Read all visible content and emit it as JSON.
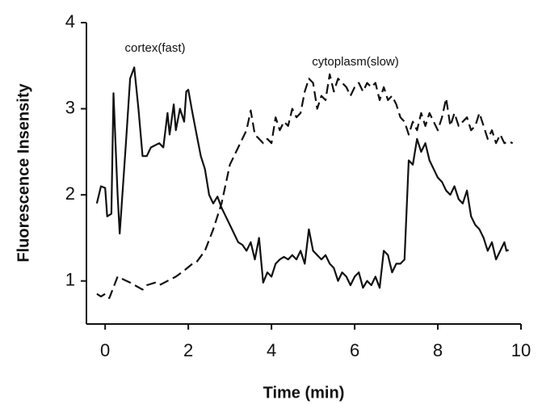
{
  "chart_data": {
    "type": "line",
    "xlabel": "Time (min)",
    "ylabel": "Fluorescence Insensity",
    "xlim": [
      -0.45,
      10
    ],
    "ylim": [
      0.5,
      4
    ],
    "xticks": [
      0,
      2,
      4,
      6,
      8,
      10
    ],
    "yticks": [
      1,
      2,
      3,
      4
    ],
    "grid": false,
    "series": [
      {
        "name": "cortex(fast)",
        "color": "#111111",
        "dash": false,
        "x": [
          -0.2,
          -0.1,
          0,
          0.05,
          0.15,
          0.2,
          0.3,
          0.35,
          0.5,
          0.6,
          0.7,
          0.8,
          0.9,
          1.0,
          1.1,
          1.3,
          1.4,
          1.5,
          1.55,
          1.65,
          1.7,
          1.8,
          1.9,
          1.95,
          2.0,
          2.1,
          2.2,
          2.3,
          2.4,
          2.5,
          2.6,
          2.7,
          2.8,
          2.9,
          3.0,
          3.1,
          3.2,
          3.3,
          3.4,
          3.5,
          3.6,
          3.7,
          3.8,
          3.9,
          4.0,
          4.1,
          4.2,
          4.3,
          4.4,
          4.5,
          4.6,
          4.7,
          4.8,
          4.9,
          5.0,
          5.1,
          5.2,
          5.3,
          5.4,
          5.5,
          5.6,
          5.7,
          5.8,
          5.9,
          6.0,
          6.1,
          6.2,
          6.3,
          6.4,
          6.5,
          6.6,
          6.7,
          6.8,
          6.9,
          7.0,
          7.1,
          7.2,
          7.3,
          7.4,
          7.5,
          7.6,
          7.7,
          7.8,
          7.9,
          8.0,
          8.1,
          8.2,
          8.3,
          8.4,
          8.5,
          8.6,
          8.7,
          8.8,
          8.9,
          9.0,
          9.1,
          9.2,
          9.3,
          9.4,
          9.5,
          9.6,
          9.65,
          9.7
        ],
        "values": [
          1.9,
          2.1,
          2.08,
          1.75,
          1.78,
          3.18,
          2.0,
          1.55,
          2.6,
          3.35,
          3.48,
          3.0,
          2.45,
          2.45,
          2.55,
          2.6,
          2.55,
          2.95,
          2.7,
          3.05,
          2.75,
          3.0,
          2.85,
          3.2,
          3.22,
          2.95,
          2.7,
          2.45,
          2.3,
          2.0,
          1.9,
          1.98,
          1.85,
          1.75,
          1.65,
          1.55,
          1.45,
          1.42,
          1.35,
          1.45,
          1.25,
          1.5,
          0.98,
          1.1,
          1.05,
          1.2,
          1.25,
          1.28,
          1.25,
          1.3,
          1.25,
          1.35,
          1.2,
          1.6,
          1.35,
          1.3,
          1.25,
          1.3,
          1.2,
          1.15,
          1.0,
          1.1,
          1.05,
          0.95,
          1.05,
          1.1,
          0.92,
          1.0,
          0.95,
          1.05,
          0.92,
          1.35,
          1.3,
          1.1,
          1.2,
          1.2,
          1.25,
          2.4,
          2.35,
          2.65,
          2.5,
          2.6,
          2.4,
          2.3,
          2.2,
          2.15,
          2.05,
          2.0,
          2.1,
          1.95,
          1.9,
          2.05,
          1.75,
          1.65,
          1.6,
          1.5,
          1.35,
          1.45,
          1.25,
          1.35,
          1.45,
          1.35,
          1.36
        ]
      },
      {
        "name": "cytoplasm(slow)",
        "color": "#111111",
        "dash": true,
        "x": [
          -0.2,
          -0.1,
          0,
          0.1,
          0.3,
          0.6,
          0.9,
          1.0,
          1.2,
          1.3,
          1.5,
          1.7,
          1.9,
          2.1,
          2.2,
          2.4,
          2.6,
          2.8,
          3.0,
          3.2,
          3.4,
          3.5,
          3.6,
          3.8,
          3.9,
          4.0,
          4.1,
          4.2,
          4.3,
          4.4,
          4.5,
          4.6,
          4.7,
          4.8,
          4.9,
          5.0,
          5.1,
          5.2,
          5.3,
          5.4,
          5.5,
          5.6,
          5.7,
          5.8,
          5.9,
          6.0,
          6.1,
          6.2,
          6.3,
          6.4,
          6.5,
          6.6,
          6.7,
          6.8,
          6.9,
          7.0,
          7.1,
          7.2,
          7.3,
          7.4,
          7.5,
          7.6,
          7.7,
          7.8,
          7.9,
          8.0,
          8.1,
          8.2,
          8.3,
          8.4,
          8.5,
          8.6,
          8.7,
          8.8,
          8.9,
          9.0,
          9.1,
          9.2,
          9.3,
          9.4,
          9.5,
          9.6,
          9.7,
          9.8
        ],
        "values": [
          0.85,
          0.82,
          0.85,
          0.8,
          1.05,
          0.98,
          0.9,
          0.95,
          0.98,
          0.95,
          1.0,
          1.05,
          1.12,
          1.2,
          1.22,
          1.35,
          1.6,
          1.9,
          2.35,
          2.55,
          2.75,
          2.98,
          2.7,
          2.6,
          2.65,
          2.6,
          2.9,
          2.75,
          2.85,
          2.8,
          3.0,
          2.9,
          2.95,
          3.2,
          3.35,
          3.3,
          3.0,
          3.15,
          3.1,
          3.4,
          3.2,
          3.35,
          3.3,
          3.25,
          3.15,
          3.25,
          3.3,
          3.2,
          3.3,
          3.25,
          3.3,
          3.1,
          3.25,
          3.1,
          3.15,
          3.05,
          2.9,
          2.85,
          2.7,
          2.85,
          2.75,
          2.95,
          2.8,
          2.95,
          2.85,
          2.75,
          2.9,
          3.12,
          2.8,
          2.95,
          2.8,
          2.85,
          2.9,
          2.75,
          2.8,
          2.95,
          2.8,
          2.65,
          2.75,
          2.6,
          2.7,
          2.6,
          2.62,
          2.6
        ]
      }
    ]
  }
}
